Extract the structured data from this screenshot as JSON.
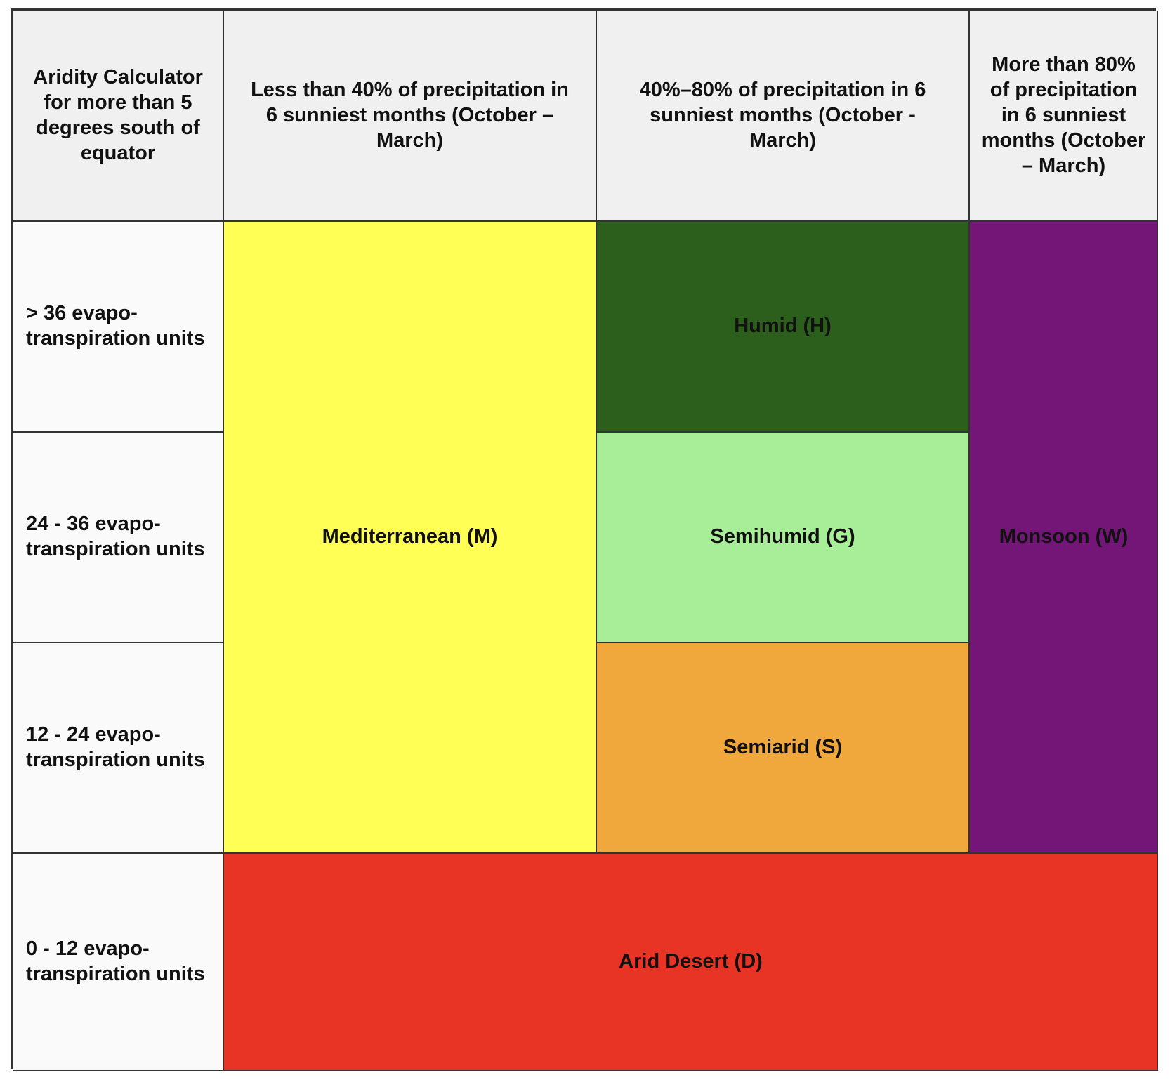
{
  "table": {
    "corner_header": "Aridity Calculator for more than 5 degrees south of equator",
    "column_headers": [
      "Less than 40% of precipitation in 6 sunniest months (October – March)",
      "40%–80% of precipitation in 6 sunniest months (October - March)",
      "More than 80% of precipitation in 6 sunniest months (October – March)"
    ],
    "row_headers": [
      "> 36 evapo-transpiration units",
      "24 - 36 evapo-transpiration units",
      "12 - 24 evapo-transpiration units",
      "0 - 12 evapo-transpiration units"
    ],
    "zones": {
      "mediterranean": {
        "label": "Mediterranean (M)",
        "color": "#ffff55"
      },
      "humid": {
        "label": "Humid (H)",
        "color": "#2b5f1b"
      },
      "semihumid": {
        "label": "Semihumid (G)",
        "color": "#a8ed98"
      },
      "semiarid": {
        "label": "Semiarid (S)",
        "color": "#f0a83d"
      },
      "monsoon": {
        "label": "Monsoon (W)",
        "color": "#741578"
      },
      "arid_desert": {
        "label": "Arid Desert (D)",
        "color": "#e83425"
      }
    },
    "header_color": "#f0f0f0",
    "row_header_color": "#fafafa",
    "border_color": "#333333"
  }
}
